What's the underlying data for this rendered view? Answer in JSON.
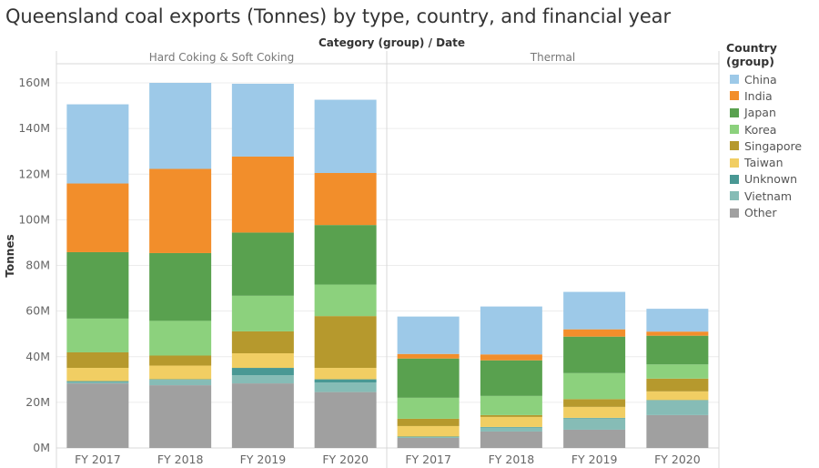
{
  "title": "Queensland coal exports (Tonnes) by type, country, and financial year",
  "column_header": "Category (group) / Date",
  "legend": {
    "title": "Country (group)",
    "items": [
      {
        "label": "China",
        "color": "#9dc9e8"
      },
      {
        "label": "India",
        "color": "#f28e2b"
      },
      {
        "label": "Japan",
        "color": "#59a14f"
      },
      {
        "label": "Korea",
        "color": "#8cd17d"
      },
      {
        "label": "Singapore",
        "color": "#b6992d"
      },
      {
        "label": "Taiwan",
        "color": "#f1ce63"
      },
      {
        "label": "Unknown",
        "color": "#499894"
      },
      {
        "label": "Vietnam",
        "color": "#86bcb6"
      },
      {
        "label": "Other",
        "color": "#a0a0a0"
      }
    ]
  },
  "chart_data": {
    "type": "bar",
    "stacked": true,
    "title": "Queensland coal exports (Tonnes) by type, country, and financial year",
    "xlabel": "Category (group) / Date",
    "ylabel": "Tonnes",
    "ylim": [
      0,
      170000000
    ],
    "yticks": [
      0,
      20000000,
      40000000,
      60000000,
      80000000,
      100000000,
      120000000,
      140000000,
      160000000
    ],
    "ytick_labels": [
      "0M",
      "20M",
      "40M",
      "60M",
      "80M",
      "100M",
      "120M",
      "140M",
      "160M"
    ],
    "grid": true,
    "legend_position": "right",
    "panels": [
      "Hard Coking & Soft Coking",
      "Thermal"
    ],
    "categories": [
      "FY 2017",
      "FY 2018",
      "FY 2019",
      "FY 2020"
    ],
    "stack_order_bottom_to_top": [
      "Other",
      "Vietnam",
      "Unknown",
      "Taiwan",
      "Singapore",
      "Korea",
      "Japan",
      "India",
      "China"
    ],
    "series": [
      {
        "name": "China",
        "values": {
          "Hard Coking & Soft Coking": [
            34700000,
            37700000,
            31900000,
            32100000
          ],
          "Thermal": [
            16400000,
            21000000,
            16400000,
            10000000
          ]
        }
      },
      {
        "name": "India",
        "values": {
          "Hard Coking & Soft Coking": [
            30100000,
            36900000,
            33300000,
            22800000
          ],
          "Thermal": [
            2000000,
            2600000,
            3200000,
            1800000
          ]
        }
      },
      {
        "name": "Japan",
        "values": {
          "Hard Coking & Soft Coking": [
            29100000,
            29700000,
            27700000,
            26100000
          ],
          "Thermal": [
            17200000,
            15600000,
            16000000,
            12600000
          ]
        }
      },
      {
        "name": "Korea",
        "values": {
          "Hard Coking & Soft Coking": [
            14800000,
            15200000,
            15600000,
            13800000
          ],
          "Thermal": [
            9200000,
            8400000,
            11400000,
            6200000
          ]
        }
      },
      {
        "name": "Singapore",
        "values": {
          "Hard Coking & Soft Coking": [
            6800000,
            4400000,
            9600000,
            22700000
          ],
          "Thermal": [
            3200000,
            800000,
            3400000,
            5600000
          ]
        }
      },
      {
        "name": "Taiwan",
        "values": {
          "Hard Coking & Soft Coking": [
            5800000,
            6000000,
            6400000,
            5000000
          ],
          "Thermal": [
            4600000,
            4400000,
            4800000,
            3800000
          ]
        }
      },
      {
        "name": "Unknown",
        "values": {
          "Hard Coking & Soft Coking": [
            400000,
            200000,
            3200000,
            1400000
          ],
          "Thermal": [
            200000,
            200000,
            200000,
            200000
          ]
        }
      },
      {
        "name": "Vietnam",
        "values": {
          "Hard Coking & Soft Coking": [
            600000,
            2400000,
            3600000,
            4200000
          ],
          "Thermal": [
            400000,
            1800000,
            5000000,
            6400000
          ]
        }
      },
      {
        "name": "Other",
        "values": {
          "Hard Coking & Soft Coking": [
            28300000,
            27500000,
            28300000,
            24500000
          ],
          "Thermal": [
            4400000,
            7200000,
            8000000,
            14400000
          ]
        }
      }
    ]
  }
}
